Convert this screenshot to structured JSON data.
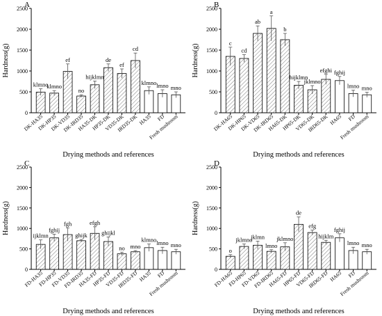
{
  "chart_data": [
    {
      "type": "bar",
      "panel_label": "A",
      "categories": [
        "DK-HA35",
        "DK-HP35",
        "DK-VD35",
        "DK-IRD35",
        "HA35-DK",
        "HP35-DK",
        "VD35-DK",
        "IRD35-DK",
        "HA35",
        "FD",
        "Fresh mushroom"
      ],
      "values": [
        495,
        470,
        990,
        400,
        670,
        1080,
        940,
        1250,
        530,
        460,
        430
      ],
      "errors": [
        80,
        60,
        180,
        30,
        90,
        90,
        110,
        180,
        90,
        90,
        70
      ],
      "labels": [
        "klmno",
        "klmno",
        "ef",
        "no",
        "hijklmn",
        "de",
        "ef",
        "cd",
        "klmno",
        "lmno",
        "mno"
      ],
      "hatched": [
        true,
        true,
        true,
        true,
        true,
        true,
        true,
        true,
        false,
        false,
        false
      ],
      "xlabel": "Drying methods and references",
      "ylabel": "Hardness(g)",
      "ylim": [
        0,
        2500
      ],
      "yticks": [
        0,
        500,
        1000,
        1500,
        2000,
        2500
      ]
    },
    {
      "type": "bar",
      "panel_label": "B",
      "categories": [
        "DK-HA65",
        "DK-HP65",
        "DK-VD65",
        "DK-IRD65",
        "HA65-DK",
        "HP65-DK",
        "VD65-DK",
        "IRD65-DK",
        "HA65",
        "FD",
        "Fresh mushroom"
      ],
      "values": [
        1350,
        1300,
        1900,
        2020,
        1750,
        660,
        550,
        800,
        770,
        460,
        430
      ],
      "errors": [
        220,
        90,
        180,
        300,
        150,
        90,
        100,
        120,
        100,
        80,
        60
      ],
      "labels": [
        "c",
        "cd",
        "ab",
        "a",
        "b",
        "hijklmn",
        "jklmno",
        "efghi",
        "fghij",
        "lmno",
        "mno"
      ],
      "hatched": [
        true,
        true,
        true,
        true,
        true,
        true,
        true,
        true,
        false,
        false,
        false
      ],
      "xlabel": "Drying methods and references",
      "ylabel": "Hardness(g)",
      "ylim": [
        0,
        2500
      ],
      "yticks": [
        0,
        500,
        1000,
        1500,
        2000,
        2500
      ]
    },
    {
      "type": "bar",
      "panel_label": "C",
      "categories": [
        "FD-HA35",
        "FD-HP35",
        "FD-VD35",
        "FD-IRD35",
        "HA35-FD",
        "HP35-FD",
        "VD35-FD",
        "IRD35-FD",
        "HA35",
        "FD",
        "Fresh mushroom"
      ],
      "values": [
        610,
        770,
        850,
        700,
        880,
        680,
        380,
        430,
        530,
        460,
        430
      ],
      "errors": [
        110,
        90,
        160,
        30,
        160,
        110,
        40,
        30,
        90,
        80,
        60
      ],
      "labels": [
        "ijklmn",
        "fghij",
        "fgh",
        "ghijk",
        "efgh",
        "ghijkl",
        "no",
        "mno",
        "klmno",
        "lmno",
        "mno"
      ],
      "hatched": [
        true,
        true,
        true,
        true,
        true,
        true,
        true,
        true,
        false,
        false,
        false
      ],
      "xlabel": "Drying methods and references",
      "ylabel": "Hardness(g)",
      "ylim": [
        0,
        2500
      ],
      "yticks": [
        0,
        500,
        1000,
        1500,
        2000,
        2500
      ]
    },
    {
      "type": "bar",
      "panel_label": "D",
      "categories": [
        "FD-HA65",
        "FD-HP65",
        "FD-VD65",
        "FD-IRD65",
        "HA65-FD",
        "HP65-FD",
        "VD65-FD",
        "IRD65-FD",
        "HA65",
        "FD",
        "Fresh mushroom"
      ],
      "values": [
        320,
        560,
        590,
        440,
        550,
        1100,
        900,
        660,
        770,
        460,
        430
      ],
      "errors": [
        40,
        60,
        100,
        40,
        100,
        180,
        60,
        50,
        100,
        80,
        60
      ],
      "labels": [
        "o",
        "jklmno",
        "jklmn",
        "lmno",
        "jklmno",
        "de",
        "efg",
        "hijklm",
        "fghij",
        "lmno",
        "mno"
      ],
      "hatched": [
        true,
        true,
        true,
        true,
        true,
        true,
        true,
        true,
        false,
        false,
        false
      ],
      "xlabel": "Drying methods and references",
      "ylabel": "Hardness(g)",
      "ylim": [
        0,
        2500
      ],
      "yticks": [
        0,
        500,
        1000,
        1500,
        2000,
        2500
      ]
    }
  ]
}
